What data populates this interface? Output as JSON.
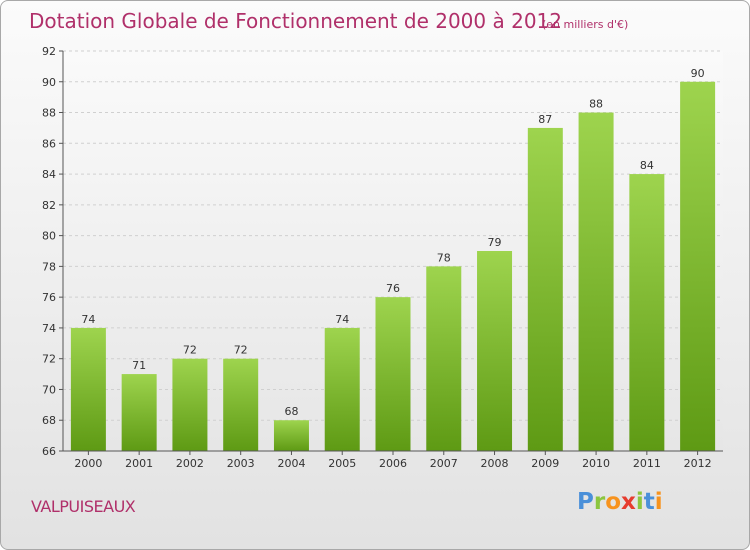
{
  "title": "Dotation Globale de Fonctionnement de 2000 à 2012",
  "unit": "(en milliers d'€)",
  "commune": "VALPUISEAUX",
  "logo": {
    "letters": [
      "P",
      "r",
      "o",
      "x",
      "i",
      "t",
      "i"
    ],
    "colors": [
      "#4a90d9",
      "#8cc63f",
      "#f7931e",
      "#e63c2f",
      "#8cc63f",
      "#4a90d9",
      "#f7931e"
    ]
  },
  "colors": {
    "bar_top": "#9ed44e",
    "bar_bottom": "#5e9a14",
    "text_accent": "#b0306a"
  },
  "chart_data": {
    "type": "bar",
    "title": "Dotation Globale de Fonctionnement de 2000 à 2012",
    "xlabel": "",
    "ylabel": "",
    "categories": [
      "2000",
      "2001",
      "2002",
      "2003",
      "2004",
      "2005",
      "2006",
      "2007",
      "2008",
      "2009",
      "2010",
      "2011",
      "2012"
    ],
    "values": [
      74,
      71,
      72,
      72,
      68,
      74,
      76,
      78,
      79,
      87,
      88,
      84,
      90
    ],
    "ylim": [
      66,
      92
    ],
    "yticks": [
      66,
      68,
      70,
      72,
      74,
      76,
      78,
      80,
      82,
      84,
      86,
      88,
      90,
      92
    ],
    "grid": true,
    "legend": "none"
  }
}
